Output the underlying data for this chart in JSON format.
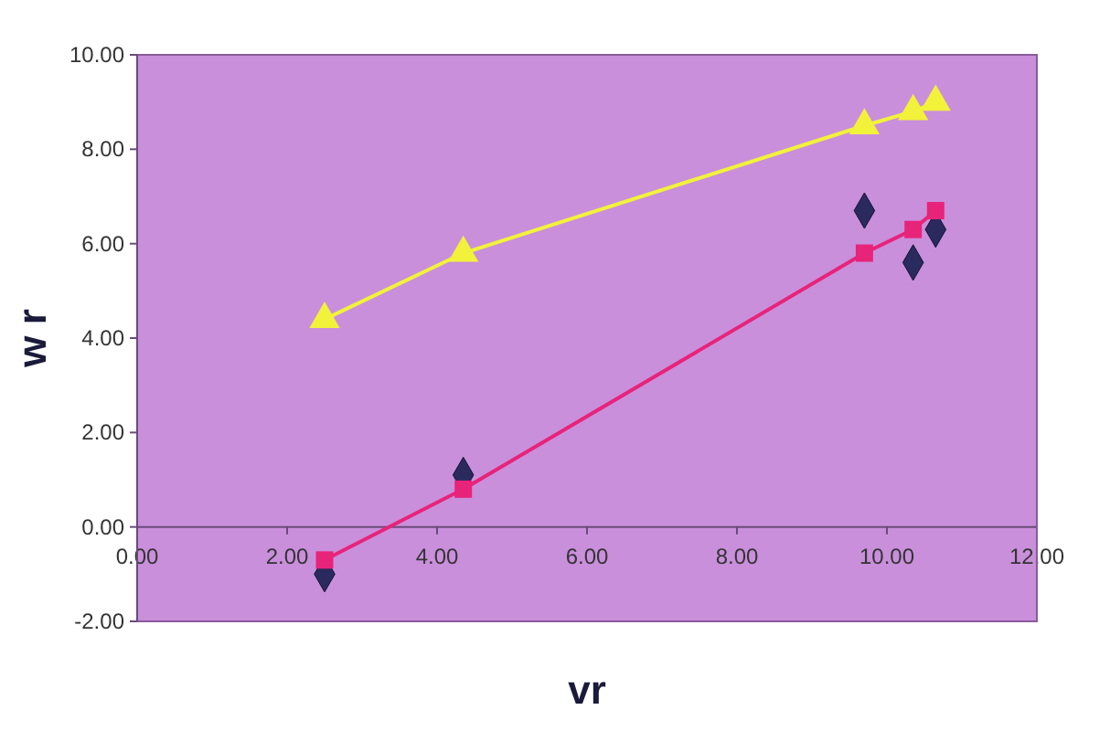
{
  "chart_data": {
    "type": "line",
    "xlabel": "vr",
    "ylabel": "w r",
    "grid": false,
    "xlim": [
      0,
      12
    ],
    "ylim": [
      -2,
      10
    ],
    "xticks": [
      {
        "value": 0,
        "label": "0.00"
      },
      {
        "value": 2,
        "label": "2.00"
      },
      {
        "value": 4,
        "label": "4.00"
      },
      {
        "value": 6,
        "label": "6.00"
      },
      {
        "value": 8,
        "label": "8.00"
      },
      {
        "value": 10,
        "label": "10.00"
      },
      {
        "value": 12,
        "label": "12.00"
      }
    ],
    "yticks": [
      {
        "value": -2,
        "label": "-2.00"
      },
      {
        "value": 0,
        "label": "0.00"
      },
      {
        "value": 2,
        "label": "2.00"
      },
      {
        "value": 4,
        "label": "4.00"
      },
      {
        "value": 6,
        "label": "6.00"
      },
      {
        "value": 8,
        "label": "8.00"
      },
      {
        "value": 10,
        "label": "10.00"
      }
    ],
    "x": [
      2.5,
      4.35,
      9.7,
      10.35,
      10.65
    ],
    "series": [
      {
        "type": "scatter",
        "marker": "diamond",
        "color": "#2a2a5e",
        "values": [
          -1.0,
          1.1,
          6.7,
          5.6,
          6.3
        ]
      },
      {
        "marker": "square",
        "color": "#e8237a",
        "values": [
          -0.7,
          0.8,
          5.8,
          6.3,
          6.7
        ]
      },
      {
        "marker": "triangle",
        "color": "#f2f23a",
        "values": [
          4.4,
          5.8,
          8.5,
          8.8,
          9.0
        ]
      }
    ]
  }
}
